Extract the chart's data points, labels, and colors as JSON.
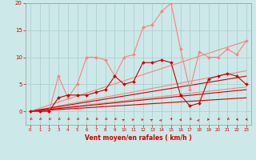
{
  "background_color": "#cce8e8",
  "grid_color": "#aacccc",
  "xlabel": "Vent moyen/en rafales ( km/h )",
  "xlabel_color": "#cc0000",
  "tick_color": "#cc0000",
  "xlim": [
    -0.5,
    23.5
  ],
  "ylim": [
    0,
    20
  ],
  "yticks": [
    0,
    5,
    10,
    15,
    20
  ],
  "xticks": [
    0,
    1,
    2,
    3,
    4,
    5,
    6,
    7,
    8,
    9,
    10,
    11,
    12,
    13,
    14,
    15,
    16,
    17,
    18,
    19,
    20,
    21,
    22,
    23
  ],
  "series": [
    {
      "x": [
        0,
        1,
        2,
        3,
        4,
        5,
        6,
        7,
        8,
        9,
        10,
        11,
        12,
        13,
        14,
        15,
        16,
        17,
        18,
        19,
        20,
        21,
        22,
        23
      ],
      "y": [
        0,
        0,
        0,
        6.5,
        2.5,
        5,
        10,
        10,
        9.5,
        6.5,
        10,
        10.5,
        15.5,
        16,
        18.5,
        20,
        11.5,
        4,
        11,
        10,
        10,
        11.5,
        10.5,
        13
      ],
      "color": "#ff8080",
      "lw": 0.8,
      "marker": "D",
      "ms": 2.0,
      "zorder": 4
    },
    {
      "x": [
        0,
        23
      ],
      "y": [
        0,
        13
      ],
      "color": "#ff8080",
      "lw": 0.8,
      "marker": null,
      "zorder": 2
    },
    {
      "x": [
        0,
        23
      ],
      "y": [
        0,
        7.5
      ],
      "color": "#ff8080",
      "lw": 0.8,
      "marker": null,
      "zorder": 2
    },
    {
      "x": [
        0,
        23
      ],
      "y": [
        0,
        4.5
      ],
      "color": "#ff8080",
      "lw": 0.8,
      "marker": null,
      "zorder": 2
    },
    {
      "x": [
        0,
        1,
        2,
        3,
        4,
        5,
        6,
        7,
        8,
        9,
        10,
        11,
        12,
        13,
        14,
        15,
        16,
        17,
        18,
        19,
        20,
        21,
        22,
        23
      ],
      "y": [
        0,
        0,
        0,
        2.5,
        3,
        3,
        3,
        3.5,
        4,
        6.5,
        5,
        5.5,
        9,
        9,
        9.5,
        9,
        3,
        1,
        1.5,
        6,
        6.5,
        7,
        6.5,
        5
      ],
      "color": "#cc0000",
      "lw": 0.8,
      "marker": "D",
      "ms": 2.0,
      "zorder": 5
    },
    {
      "x": [
        0,
        23
      ],
      "y": [
        0,
        6.5
      ],
      "color": "#cc0000",
      "lw": 0.8,
      "marker": null,
      "zorder": 3
    },
    {
      "x": [
        0,
        23
      ],
      "y": [
        0,
        4.0
      ],
      "color": "#cc0000",
      "lw": 0.8,
      "marker": null,
      "zorder": 3
    },
    {
      "x": [
        0,
        23
      ],
      "y": [
        0,
        2.5
      ],
      "color": "#cc0000",
      "lw": 0.8,
      "marker": null,
      "zorder": 3
    }
  ],
  "arrow_angles": [
    -135,
    -135,
    -135,
    -135,
    -135,
    -135,
    -135,
    -135,
    -135,
    -135,
    45,
    60,
    60,
    45,
    30,
    20,
    160,
    225,
    30,
    90,
    225,
    225,
    270,
    270
  ],
  "wind_arrows_color": "#cc0000"
}
